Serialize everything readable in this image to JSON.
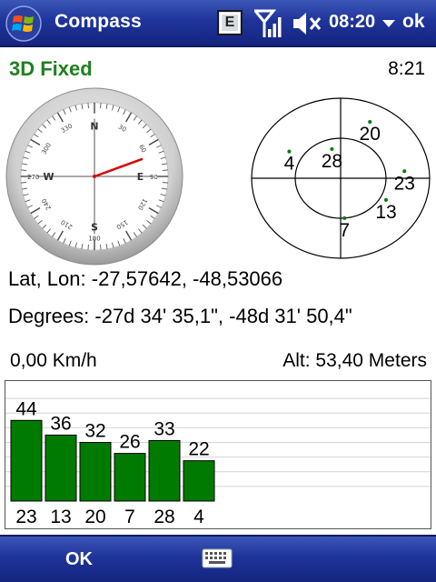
{
  "titlebar": {
    "app_title": "Compass",
    "badge_letter": "E",
    "clock": "08:20",
    "ok_label": "ok"
  },
  "status": {
    "fix": "3D Fixed",
    "time": "8:21"
  },
  "compass": {
    "heading_deg": 70,
    "labels": {
      "N": "N",
      "E": "E",
      "S": "S",
      "W": "W",
      "e90": "90",
      "w270": "270",
      "s180": "180"
    },
    "tick_numbers": [
      "30",
      "60",
      "120",
      "150",
      "210",
      "240",
      "300",
      "330"
    ]
  },
  "skyplot": {
    "satellites": [
      {
        "prn": "4",
        "azimuth": 300,
        "elevation": 30
      },
      {
        "prn": "28",
        "azimuth": 345,
        "elevation": 56
      },
      {
        "prn": "20",
        "azimuth": 25,
        "elevation": 20
      },
      {
        "prn": "23",
        "azimuth": 83,
        "elevation": 25
      },
      {
        "prn": "13",
        "azimuth": 118,
        "elevation": 38
      },
      {
        "prn": "7",
        "azimuth": 175,
        "elevation": 45
      }
    ]
  },
  "position": {
    "latlon": "Lat, Lon:  -27,57642, -48,53066",
    "degrees": "Degrees:  -27d 34' 35,1\", -48d 31' 50,4\""
  },
  "motion": {
    "speed": "0,00 Km/h",
    "altitude": "Alt: 53,40 Meters"
  },
  "chart_data": {
    "type": "bar",
    "categories": [
      "23",
      "13",
      "20",
      "7",
      "28",
      "4"
    ],
    "values": [
      44,
      36,
      32,
      26,
      33,
      22
    ],
    "ylim": [
      0,
      64
    ],
    "grid": true,
    "bar_color": "#007a00"
  },
  "bottombar": {
    "softkey_left": "OK"
  },
  "colors": {
    "titlebar": "#1f349b",
    "fix_status": "#1f7f1f",
    "heading_needle": "#dd0000",
    "satellite_dot": "#007a00"
  }
}
